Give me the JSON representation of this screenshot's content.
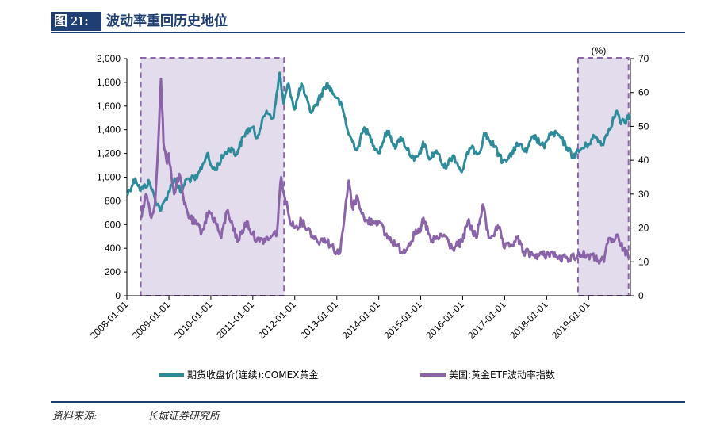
{
  "header": {
    "figure_label": "图 21:",
    "title": "波动率重回历史地位"
  },
  "footer": {
    "source_label": "资料来源:",
    "source_text": "长城证券研究所"
  },
  "colors": {
    "gold_price": "#2e8b9a",
    "etf_vol": "#8a63a8",
    "highlight_fill": "#e3dcec",
    "highlight_border": "#8a63a8",
    "rule": "#1f3f73"
  },
  "chart_data": {
    "type": "line",
    "right_axis_unit": "(%)",
    "left_axis": {
      "ylim": [
        0,
        2000
      ],
      "ticks": [
        "0",
        "200",
        "400",
        "600",
        "800",
        "1,000",
        "1,200",
        "1,400",
        "1,600",
        "1,800",
        "2,000"
      ]
    },
    "right_axis": {
      "ylim": [
        0,
        70
      ],
      "ticks": [
        "0",
        "10",
        "20",
        "30",
        "40",
        "50",
        "60",
        "70"
      ]
    },
    "x_ticks": [
      "2008-01-01",
      "2009-01-01",
      "2010-01-01",
      "2011-01-01",
      "2012-01-01",
      "2013-01-01",
      "2014-01-01",
      "2015-01-01",
      "2016-01-01",
      "2017-01-01",
      "2018-01-01",
      "2019-01-01"
    ],
    "xlim": [
      "2008-01-01",
      "2019-12-31"
    ],
    "legend_position": "bottom",
    "highlight_periods": [
      {
        "start": "2008-05-01",
        "end": "2011-09-30"
      },
      {
        "start": "2018-10-01",
        "end": "2019-12-15"
      }
    ],
    "series": [
      {
        "name": "期货收盘价(连续):COMEX黄金",
        "axis": "left",
        "points": [
          [
            "2008-01-01",
            850
          ],
          [
            "2008-03-15",
            990
          ],
          [
            "2008-05-01",
            890
          ],
          [
            "2008-07-15",
            960
          ],
          [
            "2008-09-01",
            820
          ],
          [
            "2008-10-24",
            720
          ],
          [
            "2008-12-31",
            880
          ],
          [
            "2009-02-20",
            990
          ],
          [
            "2009-04-15",
            870
          ],
          [
            "2009-06-01",
            980
          ],
          [
            "2009-09-01",
            990
          ],
          [
            "2009-12-01",
            1200
          ],
          [
            "2009-12-31",
            1100
          ],
          [
            "2010-02-05",
            1060
          ],
          [
            "2010-05-01",
            1200
          ],
          [
            "2010-06-30",
            1250
          ],
          [
            "2010-08-01",
            1180
          ],
          [
            "2010-11-01",
            1380
          ],
          [
            "2010-12-31",
            1420
          ],
          [
            "2011-01-31",
            1330
          ],
          [
            "2011-04-30",
            1560
          ],
          [
            "2011-07-01",
            1500
          ],
          [
            "2011-08-22",
            1880
          ],
          [
            "2011-09-26",
            1620
          ],
          [
            "2011-11-08",
            1790
          ],
          [
            "2011-12-30",
            1570
          ],
          [
            "2012-02-28",
            1790
          ],
          [
            "2012-05-15",
            1550
          ],
          [
            "2012-06-30",
            1600
          ],
          [
            "2012-10-04",
            1790
          ],
          [
            "2012-12-31",
            1670
          ],
          [
            "2013-02-20",
            1580
          ],
          [
            "2013-04-15",
            1360
          ],
          [
            "2013-06-28",
            1230
          ],
          [
            "2013-08-28",
            1420
          ],
          [
            "2013-12-31",
            1205
          ],
          [
            "2014-03-14",
            1390
          ],
          [
            "2014-06-01",
            1250
          ],
          [
            "2014-07-10",
            1340
          ],
          [
            "2014-11-05",
            1140
          ],
          [
            "2014-12-31",
            1200
          ],
          [
            "2015-01-22",
            1300
          ],
          [
            "2015-03-17",
            1150
          ],
          [
            "2015-05-18",
            1225
          ],
          [
            "2015-07-24",
            1080
          ],
          [
            "2015-10-15",
            1185
          ],
          [
            "2015-12-17",
            1050
          ],
          [
            "2015-12-31",
            1060
          ],
          [
            "2016-03-01",
            1245
          ],
          [
            "2016-05-30",
            1210
          ],
          [
            "2016-07-06",
            1370
          ],
          [
            "2016-10-07",
            1255
          ],
          [
            "2016-12-15",
            1130
          ],
          [
            "2016-12-31",
            1150
          ],
          [
            "2017-03-15",
            1200
          ],
          [
            "2017-04-17",
            1290
          ],
          [
            "2017-07-10",
            1210
          ],
          [
            "2017-09-08",
            1350
          ],
          [
            "2017-12-12",
            1245
          ],
          [
            "2017-12-31",
            1305
          ],
          [
            "2018-01-25",
            1365
          ],
          [
            "2018-04-11",
            1360
          ],
          [
            "2018-06-29",
            1250
          ],
          [
            "2018-08-16",
            1175
          ],
          [
            "2018-10-26",
            1235
          ],
          [
            "2018-12-31",
            1280
          ],
          [
            "2019-02-20",
            1345
          ],
          [
            "2019-05-01",
            1280
          ],
          [
            "2019-06-30",
            1410
          ],
          [
            "2019-09-04",
            1560
          ],
          [
            "2019-10-01",
            1470
          ],
          [
            "2019-11-12",
            1460
          ],
          [
            "2019-12-31",
            1520
          ]
        ]
      },
      {
        "name": "美国:黄金ETF波动率指数",
        "axis": "right",
        "points": [
          [
            "2008-05-01",
            23
          ],
          [
            "2008-06-15",
            30
          ],
          [
            "2008-08-01",
            23
          ],
          [
            "2008-09-01",
            27
          ],
          [
            "2008-09-20",
            38
          ],
          [
            "2008-10-24",
            64
          ],
          [
            "2008-11-15",
            45
          ],
          [
            "2008-12-15",
            39
          ],
          [
            "2008-12-31",
            42
          ],
          [
            "2009-02-15",
            30
          ],
          [
            "2009-04-01",
            36
          ],
          [
            "2009-05-15",
            27
          ],
          [
            "2009-07-01",
            23
          ],
          [
            "2009-10-15",
            19
          ],
          [
            "2009-12-15",
            25
          ],
          [
            "2010-02-10",
            22
          ],
          [
            "2010-04-01",
            17
          ],
          [
            "2010-05-20",
            25
          ],
          [
            "2010-07-01",
            22
          ],
          [
            "2010-08-20",
            16
          ],
          [
            "2010-11-10",
            22
          ],
          [
            "2010-12-31",
            18
          ],
          [
            "2011-03-01",
            16
          ],
          [
            "2011-06-01",
            17
          ],
          [
            "2011-08-01",
            19
          ],
          [
            "2011-08-15",
            27
          ],
          [
            "2011-09-05",
            35
          ],
          [
            "2011-09-30",
            30
          ],
          [
            "2011-11-15",
            23
          ],
          [
            "2011-12-31",
            20
          ],
          [
            "2012-03-01",
            22
          ],
          [
            "2012-05-15",
            19
          ],
          [
            "2012-07-15",
            16
          ],
          [
            "2012-09-15",
            17
          ],
          [
            "2012-12-31",
            13
          ],
          [
            "2013-02-01",
            13
          ],
          [
            "2013-04-15",
            34
          ],
          [
            "2013-05-15",
            26
          ],
          [
            "2013-07-01",
            29
          ],
          [
            "2013-09-01",
            22
          ],
          [
            "2013-12-31",
            22
          ],
          [
            "2014-03-01",
            18
          ],
          [
            "2014-06-01",
            15
          ],
          [
            "2014-08-01",
            13
          ],
          [
            "2014-11-10",
            18
          ],
          [
            "2014-12-31",
            19
          ],
          [
            "2015-01-25",
            23
          ],
          [
            "2015-04-01",
            16
          ],
          [
            "2015-07-24",
            18
          ],
          [
            "2015-10-01",
            14
          ],
          [
            "2015-12-31",
            16
          ],
          [
            "2016-02-15",
            22
          ],
          [
            "2016-05-01",
            17
          ],
          [
            "2016-06-24",
            27
          ],
          [
            "2016-08-15",
            17
          ],
          [
            "2016-11-10",
            20
          ],
          [
            "2016-12-31",
            14
          ],
          [
            "2017-03-01",
            15
          ],
          [
            "2017-04-20",
            17
          ],
          [
            "2017-06-15",
            13
          ],
          [
            "2017-09-01",
            12
          ],
          [
            "2017-12-31",
            12
          ],
          [
            "2018-02-05",
            13
          ],
          [
            "2018-04-15",
            11
          ],
          [
            "2018-07-01",
            11
          ],
          [
            "2018-10-01",
            12
          ],
          [
            "2018-12-31",
            12
          ],
          [
            "2019-03-01",
            11
          ],
          [
            "2019-05-15",
            10
          ],
          [
            "2019-06-25",
            17
          ],
          [
            "2019-08-05",
            16
          ],
          [
            "2019-09-01",
            18
          ],
          [
            "2019-10-01",
            15
          ],
          [
            "2019-11-01",
            14
          ],
          [
            "2019-12-15",
            11
          ]
        ]
      }
    ]
  }
}
